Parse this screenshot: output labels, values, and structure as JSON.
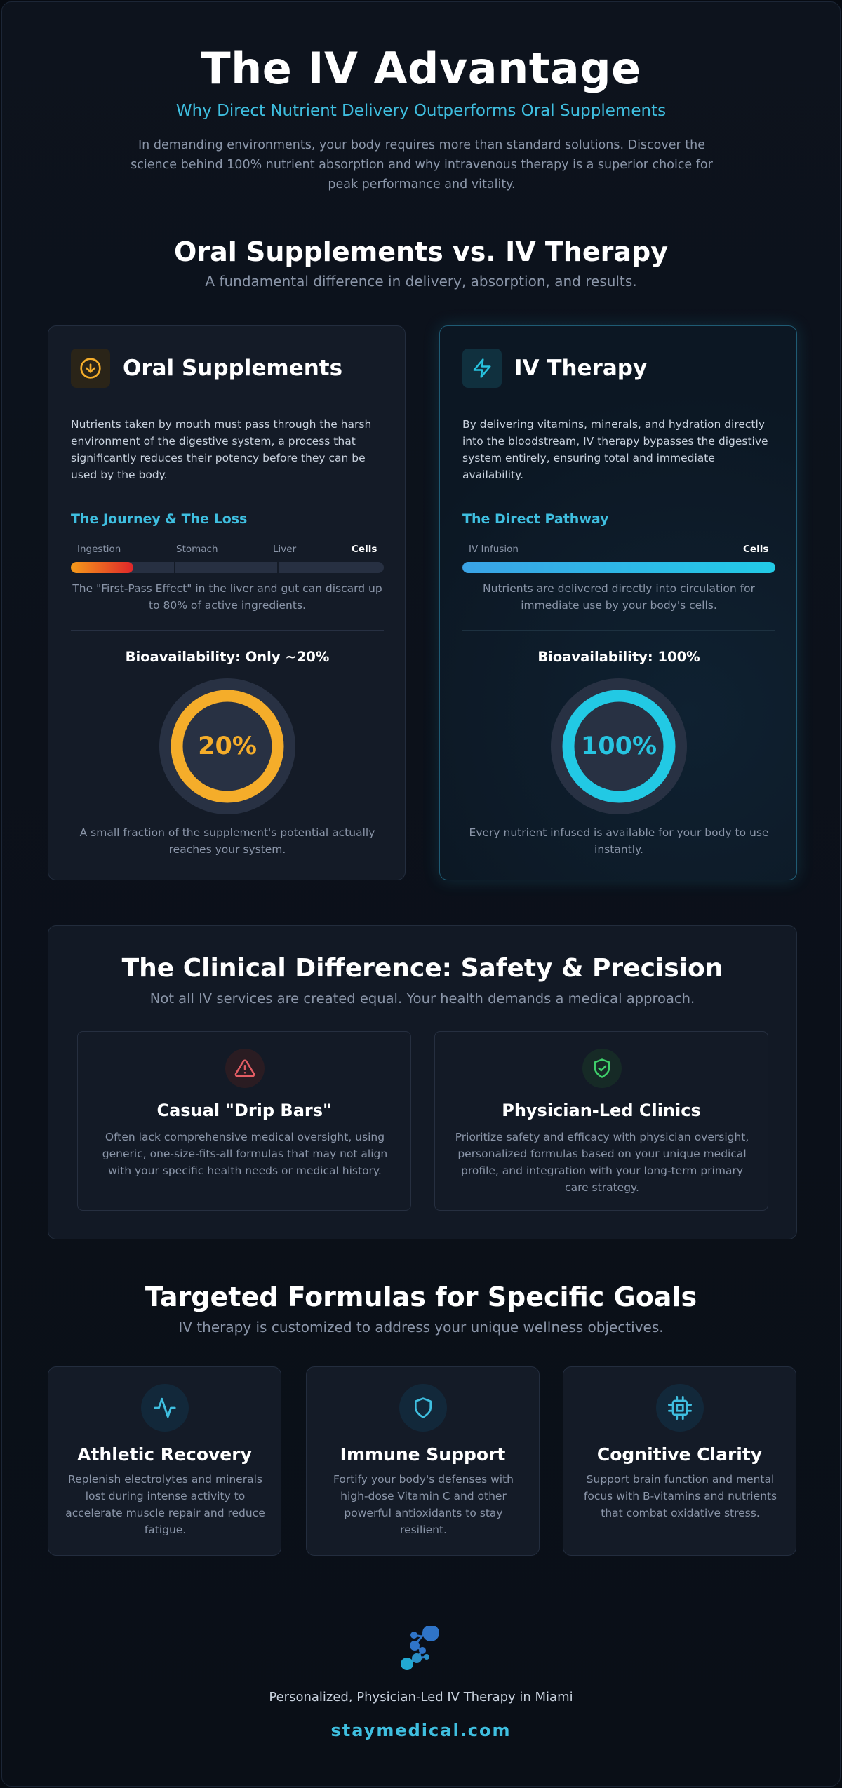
{
  "header": {
    "title": "The IV Advantage",
    "subtitle": "Why Direct Nutrient Delivery Outperforms Oral Supplements",
    "description": "In demanding environments, your body requires more than standard solutions. Discover the science behind 100% nutrient absorption and why intravenous therapy is a superior choice for peak performance and vitality."
  },
  "comparison": {
    "title": "Oral Supplements vs. IV Therapy",
    "subtitle": "A fundamental difference in delivery, absorption, and results.",
    "oral": {
      "icon": "arrow-down-circle-icon",
      "title": "Oral Supplements",
      "body": "Nutrients taken by mouth must pass through the harsh environment of the digestive system, a process that significantly reduces their potency before they can be used by the body.",
      "pathway_title": "The Journey & The Loss",
      "stages": [
        "Ingestion",
        "Stomach",
        "Liver",
        "Cells"
      ],
      "pathway_fill_percent": 20,
      "pathway_note": "The \"First-Pass Effect\" in the liver and gut can discard up to 80% of active ingredients.",
      "bioavailability_label": "Bioavailability: Only ~20%",
      "bioavailability_value": "20%",
      "bioavailability_percent": 20,
      "ring_color": "#f5ad2a",
      "ring_note": "A small fraction of the supplement's potential actually reaches your system."
    },
    "iv": {
      "icon": "lightning-icon",
      "title": "IV Therapy",
      "body": "By delivering vitamins, minerals, and hydration directly into the bloodstream, IV therapy bypasses the digestive system entirely, ensuring total and immediate availability.",
      "pathway_title": "The Direct Pathway",
      "stages": [
        "IV Infusion",
        "Cells"
      ],
      "pathway_fill_percent": 100,
      "pathway_note": "Nutrients are delivered directly into circulation for immediate use by your body's cells.",
      "bioavailability_label": "Bioavailability: 100%",
      "bioavailability_value": "100%",
      "bioavailability_percent": 100,
      "ring_color": "#27c4e0",
      "ring_note": "Every nutrient infused is available for your body to use instantly."
    }
  },
  "clinical": {
    "title": "The Clinical Difference: Safety & Precision",
    "subtitle": "Not all IV services are created equal. Your health demands a medical approach.",
    "items": [
      {
        "icon": "warning-triangle-icon",
        "title": "Casual \"Drip Bars\"",
        "description": "Often lack comprehensive medical oversight, using generic, one-size-fits-all formulas that may not align with your specific health needs or medical history."
      },
      {
        "icon": "shield-check-icon",
        "title": "Physician-Led Clinics",
        "description": "Prioritize safety and efficacy with physician oversight, personalized formulas based on your unique medical profile, and integration with your long-term primary care strategy."
      }
    ]
  },
  "formulas": {
    "title": "Targeted Formulas for Specific Goals",
    "subtitle": "IV therapy is customized to address your unique wellness objectives.",
    "items": [
      {
        "icon": "heartbeat-icon",
        "title": "Athletic Recovery",
        "description": "Replenish electrolytes and minerals lost during intense activity to accelerate muscle repair and reduce fatigue."
      },
      {
        "icon": "shield-icon",
        "title": "Immune Support",
        "description": "Fortify your body's defenses with high-dose Vitamin C and other powerful antioxidants to stay resilient."
      },
      {
        "icon": "cpu-chip-icon",
        "title": "Cognitive Clarity",
        "description": "Support brain function and mental focus with B-vitamins and nutrients that combat oxidative stress."
      }
    ]
  },
  "footer": {
    "logo": "molecule-logo-icon",
    "tagline": "Personalized, Physician-Led IV Therapy in Miami",
    "url": "staymedical.com"
  },
  "colors": {
    "accent": "#3fbfe0",
    "oral_accent": "#f5ad2a",
    "warning": "#e35d64",
    "success": "#3ecf6a"
  }
}
